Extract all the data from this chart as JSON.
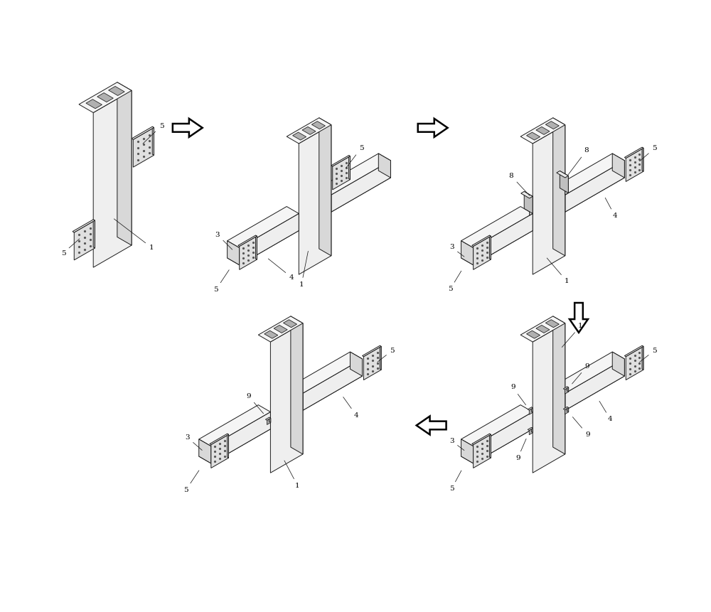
{
  "bg_color": "#ffffff",
  "lc": "#1a1a1a",
  "fc_front": "#efefef",
  "fc_side": "#d5d5d5",
  "fc_top": "#f8f8f8",
  "fc_plate": "#e0e0e0",
  "fc_plate_side": "#c8c8c8",
  "fc_plate_top": "#f0f0f0",
  "fc_beam_front": "#eeeeee",
  "fc_beam_side": "#d8d8d8",
  "fc_beam_top": "#f5f5f5",
  "fc_slot": "#b0b0b0",
  "fc_bolt": "#999999",
  "dot_color": "#555555",
  "figsize": [
    10.0,
    8.61
  ],
  "dpi": 100
}
